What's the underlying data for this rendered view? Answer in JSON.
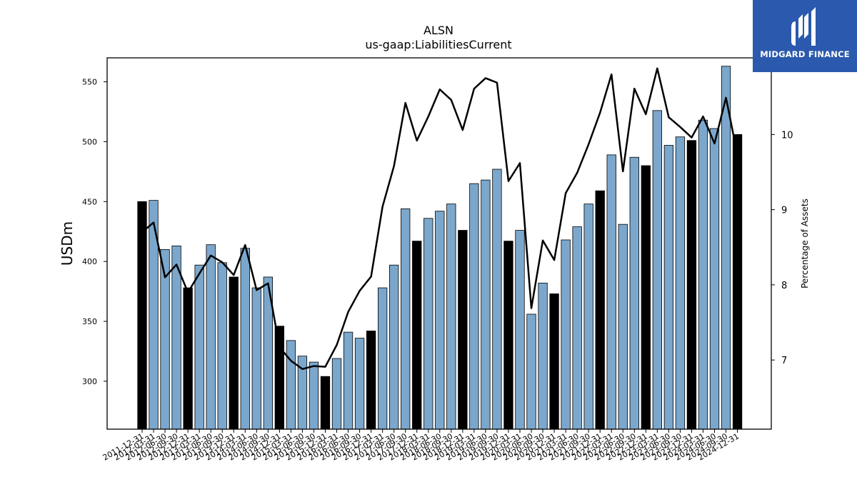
{
  "chart_data": {
    "type": "bar",
    "title": "ALSN",
    "subtitle": "us-gaap:LiabilitiesCurrent",
    "ylabel": "USDm",
    "y2label": "Percentage of Assets",
    "ylim": [
      260,
      570
    ],
    "y2lim": [
      6.08,
      11.02
    ],
    "yticks": [
      300,
      350,
      400,
      450,
      500,
      550
    ],
    "y2ticks": [
      7,
      8,
      9,
      10
    ],
    "grid": false,
    "bar_colors": {
      "annual": "#000000",
      "quarterly": "#7ba7cc"
    },
    "line_color": "#000000",
    "categories": [
      "2011-12-31",
      "2012-03-31",
      "2012-06-30",
      "2012-09-30",
      "2012-12-31",
      "2013-03-31",
      "2013-06-30",
      "2013-09-30",
      "2013-12-31",
      "2014-03-31",
      "2014-06-30",
      "2014-09-30",
      "2014-12-31",
      "2015-03-31",
      "2015-06-30",
      "2015-09-30",
      "2015-12-31",
      "2016-03-31",
      "2016-06-30",
      "2016-09-30",
      "2016-12-31",
      "2017-03-31",
      "2017-06-30",
      "2017-09-30",
      "2017-12-31",
      "2018-03-31",
      "2018-06-30",
      "2018-09-30",
      "2018-12-31",
      "2019-03-31",
      "2019-06-30",
      "2019-09-30",
      "2019-12-31",
      "2020-03-31",
      "2020-06-30",
      "2020-09-30",
      "2020-12-31",
      "2021-03-31",
      "2021-06-30",
      "2021-09-30",
      "2021-12-31",
      "2022-03-31",
      "2022-06-30",
      "2022-09-30",
      "2022-12-31",
      "2023-03-31",
      "2023-06-30",
      "2023-09-30",
      "2023-12-31",
      "2024-03-31",
      "2024-06-30",
      "2024-09-30",
      "2024-12-31"
    ],
    "values": [
      450,
      451,
      410,
      413,
      378,
      397,
      414,
      399,
      387,
      411,
      378,
      387,
      346,
      334,
      321,
      316,
      304,
      319,
      341,
      336,
      342,
      378,
      397,
      444,
      417,
      436,
      442,
      448,
      426,
      465,
      468,
      477,
      417,
      426,
      356,
      382,
      373,
      418,
      429,
      448,
      459,
      489,
      431,
      487,
      480,
      526,
      497,
      504,
      501,
      518,
      511,
      563,
      506
    ],
    "annual": [
      true,
      false,
      false,
      false,
      true,
      false,
      false,
      false,
      true,
      false,
      false,
      false,
      true,
      false,
      false,
      false,
      true,
      false,
      false,
      false,
      true,
      false,
      false,
      false,
      true,
      false,
      false,
      false,
      true,
      false,
      false,
      false,
      true,
      false,
      false,
      false,
      true,
      false,
      false,
      false,
      true,
      false,
      false,
      false,
      true,
      false,
      false,
      false,
      true,
      false,
      false,
      false,
      true
    ],
    "pct_of_assets": [
      8.7,
      8.83,
      8.1,
      8.27,
      7.9,
      8.15,
      8.39,
      8.3,
      8.13,
      8.53,
      7.93,
      8.02,
      7.17,
      6.99,
      6.88,
      6.92,
      6.91,
      7.2,
      7.64,
      7.92,
      8.11,
      9.04,
      9.58,
      10.42,
      9.92,
      10.24,
      10.6,
      10.46,
      10.06,
      10.61,
      10.75,
      10.69,
      9.38,
      9.62,
      7.69,
      8.59,
      8.33,
      9.22,
      9.49,
      9.87,
      10.29,
      10.8,
      9.51,
      10.61,
      10.27,
      10.88,
      10.23,
      10.1,
      9.96,
      10.24,
      9.88,
      10.49,
      9.73
    ]
  },
  "logo": {
    "text": "MIDGARD FINANCE"
  }
}
